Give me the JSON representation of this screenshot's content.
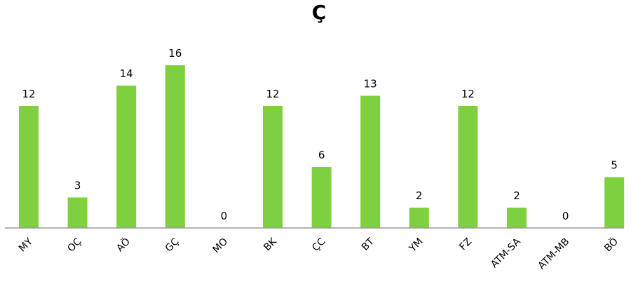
{
  "chart_data": {
    "type": "bar",
    "title": "Ç",
    "xlabel": "",
    "ylabel": "",
    "categories": [
      "MY",
      "OÇ",
      "AÖ",
      "GÇ",
      "MO",
      "BK",
      "ÇC",
      "BT",
      "YM",
      "FZ",
      "ATM-SA",
      "ATM-MB",
      "BÖ"
    ],
    "values": [
      12,
      3,
      14,
      16,
      0,
      12,
      6,
      13,
      2,
      12,
      2,
      0,
      5
    ],
    "value_labels": [
      "12",
      "3",
      "14",
      "16",
      "0",
      "12",
      "6",
      "13",
      "2",
      "12",
      "2",
      "0",
      "5"
    ],
    "ylim": [
      0,
      16
    ],
    "grid": false,
    "legend": "none",
    "bar_color": "#7ed03f",
    "axis_color": "#9a9a9a"
  }
}
